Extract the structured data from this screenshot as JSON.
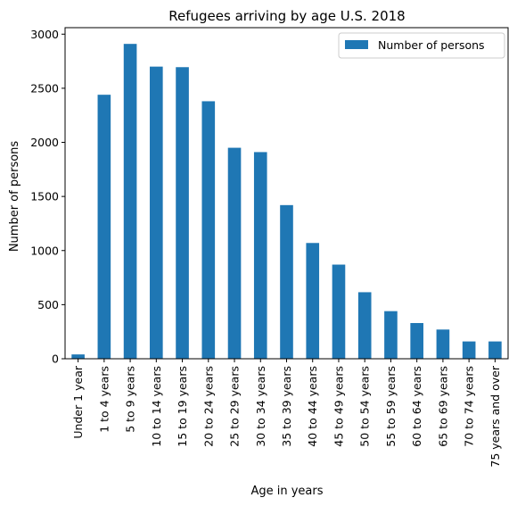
{
  "chart_data": {
    "type": "bar",
    "title": "Refugees arriving by age U.S. 2018",
    "xlabel": "Age in years",
    "ylabel": "Number of persons",
    "categories": [
      "Under 1 year",
      "1 to 4 years",
      "5 to 9 years",
      "10 to 14 years",
      "15 to 19 years",
      "20 to 24 years",
      "25 to 29 years",
      "30 to 34 years",
      "35 to 39 years",
      "40 to 44 years",
      "45 to 49 years",
      "50 to 54 years",
      "55 to 59 years",
      "60 to 64 years",
      "65 to 69 years",
      "70 to 74 years",
      "75 years and over"
    ],
    "series": [
      {
        "name": "Number of persons",
        "color": "#1f77b4",
        "values": [
          40,
          2440,
          2910,
          2700,
          2695,
          2380,
          1950,
          1910,
          1420,
          1070,
          870,
          615,
          440,
          330,
          270,
          160,
          160
        ]
      }
    ],
    "ylim": [
      0,
      3060
    ],
    "yticks": [
      0,
      500,
      1000,
      1500,
      2000,
      2500,
      3000
    ],
    "grid": false,
    "legend_position": "top-right"
  }
}
